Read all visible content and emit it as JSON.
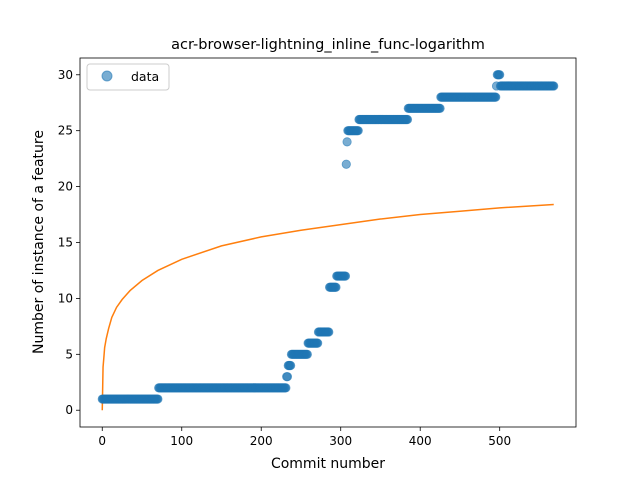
{
  "chart_data": {
    "type": "scatter",
    "title": "acr-browser-lightning_inline_func-logarithm",
    "xlabel": "Commit number",
    "ylabel": "Number of instance of a feature",
    "xlim": [
      -28,
      596
    ],
    "ylim": [
      -1.5,
      31.5
    ],
    "x_ticks": [
      0,
      100,
      200,
      300,
      400,
      500
    ],
    "y_ticks": [
      0,
      5,
      10,
      15,
      20,
      25,
      30
    ],
    "grid": false,
    "legend": {
      "placement": "top-left",
      "entries": [
        "data"
      ]
    },
    "colors": {
      "data": "#1f77b4",
      "fit": "#ff7f0e"
    },
    "series": [
      {
        "name": "data",
        "kind": "scatter",
        "segments": [
          {
            "x_start": 0,
            "x_end": 70,
            "y": 1
          },
          {
            "x_start": 71,
            "x_end": 231,
            "y": 2
          },
          {
            "x_start": 232,
            "x_end": 233,
            "y": 3
          },
          {
            "x_start": 234,
            "x_end": 237,
            "y": 4
          },
          {
            "x_start": 238,
            "x_end": 258,
            "y": 5
          },
          {
            "x_start": 259,
            "x_end": 271,
            "y": 6
          },
          {
            "x_start": 272,
            "x_end": 285,
            "y": 7
          },
          {
            "x_start": 286,
            "x_end": 294,
            "y": 11
          },
          {
            "x_start": 295,
            "x_end": 306,
            "y": 12
          },
          {
            "x_start": 307,
            "x_end": 307,
            "y": 22
          },
          {
            "x_start": 308,
            "x_end": 308,
            "y": 24
          },
          {
            "x_start": 309,
            "x_end": 322,
            "y": 25
          },
          {
            "x_start": 323,
            "x_end": 384,
            "y": 26
          },
          {
            "x_start": 385,
            "x_end": 425,
            "y": 27
          },
          {
            "x_start": 426,
            "x_end": 495,
            "y": 28
          },
          {
            "x_start": 496,
            "x_end": 496,
            "y": 29
          },
          {
            "x_start": 497,
            "x_end": 500,
            "y": 30
          },
          {
            "x_start": 501,
            "x_end": 568,
            "y": 29
          }
        ]
      },
      {
        "kind": "line",
        "x": [
          0,
          1,
          2,
          3,
          5,
          8,
          12,
          18,
          25,
          35,
          50,
          70,
          100,
          150,
          200,
          250,
          300,
          350,
          400,
          450,
          500,
          568
        ],
        "y": [
          0.0,
          3.86,
          4.7,
          5.6,
          6.4,
          7.3,
          8.3,
          9.2,
          9.9,
          10.7,
          11.6,
          12.5,
          13.5,
          14.7,
          15.5,
          16.1,
          16.6,
          17.1,
          17.5,
          17.8,
          18.1,
          18.4
        ]
      }
    ]
  }
}
